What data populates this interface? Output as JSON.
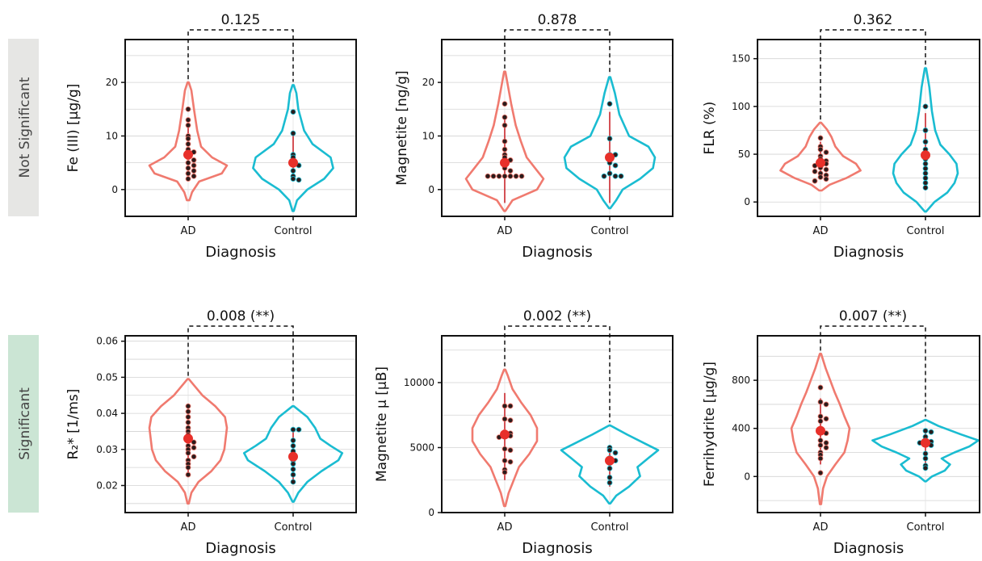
{
  "row_labels": [
    {
      "text": "Not Significant",
      "color": "#e6e6e4"
    },
    {
      "text": "Significant",
      "color": "#cbe5d4"
    }
  ],
  "colors": {
    "ad": "#f07a6f",
    "control": "#1abcd1",
    "mean": "#e8302a",
    "whisker": "#c9252c",
    "point": "#2b1b1b"
  },
  "chart_data": [
    {
      "type": "violin",
      "pvalue": "0.125",
      "ylabel": "Fe (III) [µg/g]",
      "xlabel": "Diagnosis",
      "categories": [
        "AD",
        "Control"
      ],
      "ylim": [
        -5,
        28
      ],
      "yticks": [
        0,
        10,
        20
      ],
      "grid": [
        -5,
        0,
        5,
        10,
        15,
        20,
        25
      ],
      "violins": [
        {
          "name": "AD",
          "lo": -2,
          "hi": 20,
          "widths": [
            [
              -2,
              0.02
            ],
            [
              -0.5,
              0.06
            ],
            [
              1.5,
              0.17
            ],
            [
              3,
              0.52
            ],
            [
              4.5,
              0.6
            ],
            [
              6,
              0.37
            ],
            [
              8,
              0.2
            ],
            [
              11,
              0.14
            ],
            [
              15,
              0.09
            ],
            [
              18.5,
              0.05
            ],
            [
              20,
              0.01
            ]
          ]
        },
        {
          "name": "Control",
          "lo": -4,
          "hi": 19.5,
          "widths": [
            [
              -4,
              0.01
            ],
            [
              -2,
              0.06
            ],
            [
              0,
              0.22
            ],
            [
              2,
              0.48
            ],
            [
              4,
              0.62
            ],
            [
              6,
              0.58
            ],
            [
              8.5,
              0.3
            ],
            [
              11,
              0.17
            ],
            [
              15,
              0.08
            ],
            [
              18,
              0.05
            ],
            [
              19.5,
              0.01
            ]
          ]
        }
      ],
      "points": [
        [
          15,
          13,
          12,
          10,
          9.5,
          8.5,
          7.5,
          7,
          6.5,
          6,
          5.5,
          5,
          4.5,
          4,
          3.5,
          3,
          2.5,
          2
        ],
        [
          14.5,
          10.5,
          6.5,
          6,
          5,
          4.5,
          3.5,
          2.5,
          2,
          1.8
        ]
      ],
      "mean": [
        6.5,
        5.0
      ],
      "whisker": [
        [
          2,
          12.5
        ],
        [
          1.8,
          10.5
        ]
      ]
    },
    {
      "type": "violin",
      "pvalue": "0.878",
      "ylabel": "Magnetite [ng/g]",
      "xlabel": "Diagnosis",
      "categories": [
        "AD",
        "Control"
      ],
      "ylim": [
        -5,
        28
      ],
      "yticks": [
        0,
        10,
        20
      ],
      "grid": [
        -5,
        0,
        5,
        10,
        15,
        20,
        25
      ],
      "violins": [
        {
          "name": "AD",
          "lo": -4,
          "hi": 22,
          "widths": [
            [
              -4,
              0.01
            ],
            [
              -2,
              0.12
            ],
            [
              0,
              0.5
            ],
            [
              2,
              0.6
            ],
            [
              4,
              0.47
            ],
            [
              6,
              0.34
            ],
            [
              9,
              0.25
            ],
            [
              12,
              0.17
            ],
            [
              16,
              0.1
            ],
            [
              20,
              0.04
            ],
            [
              22,
              0.01
            ]
          ]
        },
        {
          "name": "Control",
          "lo": -3.5,
          "hi": 21,
          "widths": [
            [
              -3.5,
              0.01
            ],
            [
              -2,
              0.1
            ],
            [
              0,
              0.2
            ],
            [
              2,
              0.47
            ],
            [
              4,
              0.67
            ],
            [
              6,
              0.7
            ],
            [
              8,
              0.6
            ],
            [
              10,
              0.3
            ],
            [
              14,
              0.15
            ],
            [
              18,
              0.08
            ],
            [
              21,
              0.01
            ]
          ]
        }
      ],
      "points": [
        [
          16,
          13.5,
          12,
          9,
          7.5,
          6.5,
          6,
          5.5,
          5,
          4,
          3.5,
          2.5,
          2.5,
          2.5,
          2.5,
          2.5,
          2.5,
          2.5
        ],
        [
          16,
          9.5,
          6.5,
          6.5,
          5,
          4.5,
          3,
          2.5,
          2.5,
          2.5
        ]
      ],
      "mean": [
        5.0,
        6.0
      ],
      "whisker": [
        [
          -2.5,
          13
        ],
        [
          -2.5,
          14.5
        ]
      ]
    },
    {
      "type": "violin",
      "pvalue": "0.362",
      "ylabel": "FLR (%)",
      "xlabel": "Diagnosis",
      "categories": [
        "AD",
        "Control"
      ],
      "ylim": [
        -15,
        170
      ],
      "yticks": [
        0,
        50,
        100,
        150
      ],
      "grid": [
        0,
        25,
        50,
        75,
        100,
        125,
        150
      ],
      "violins": [
        {
          "name": "AD",
          "lo": 12,
          "hi": 83,
          "widths": [
            [
              12,
              0.02
            ],
            [
              18,
              0.14
            ],
            [
              25,
              0.4
            ],
            [
              33,
              0.62
            ],
            [
              40,
              0.55
            ],
            [
              48,
              0.35
            ],
            [
              58,
              0.23
            ],
            [
              68,
              0.17
            ],
            [
              76,
              0.1
            ],
            [
              83,
              0.01
            ]
          ]
        },
        {
          "name": "Control",
          "lo": -10,
          "hi": 140,
          "widths": [
            [
              -10,
              0.01
            ],
            [
              0,
              0.14
            ],
            [
              10,
              0.34
            ],
            [
              20,
              0.45
            ],
            [
              30,
              0.5
            ],
            [
              40,
              0.48
            ],
            [
              50,
              0.37
            ],
            [
              60,
              0.23
            ],
            [
              75,
              0.15
            ],
            [
              95,
              0.1
            ],
            [
              120,
              0.06
            ],
            [
              140,
              0.01
            ]
          ]
        }
      ],
      "points": [
        [
          67,
          58,
          55,
          52,
          48,
          45,
          43,
          41,
          40,
          38,
          36,
          34,
          32,
          30,
          28,
          26,
          24,
          22
        ],
        [
          100,
          75,
          63,
          55,
          45,
          40,
          35,
          30,
          25,
          20,
          15
        ]
      ],
      "mean": [
        41,
        49
      ],
      "whisker": [
        [
          25,
          63
        ],
        [
          12,
          93
        ]
      ]
    },
    {
      "type": "violin",
      "pvalue": "0.008 (**)",
      "ylabel": "R₂* [1/ms]",
      "xlabel": "Diagnosis",
      "categories": [
        "AD",
        "Control"
      ],
      "ylim": [
        0.0125,
        0.0615
      ],
      "yticks": [
        0.02,
        0.03,
        0.04,
        0.05,
        0.06
      ],
      "yticklabels": [
        "0.02",
        "0.03",
        "0.04",
        "0.05",
        "0.06"
      ],
      "grid": [
        0.015,
        0.02,
        0.025,
        0.03,
        0.035,
        0.04,
        0.045,
        0.05,
        0.055,
        0.06
      ],
      "violins": [
        {
          "name": "AD",
          "lo": 0.015,
          "hi": 0.0495,
          "widths": [
            [
              0.015,
              0.01
            ],
            [
              0.018,
              0.05
            ],
            [
              0.021,
              0.16
            ],
            [
              0.024,
              0.36
            ],
            [
              0.027,
              0.5
            ],
            [
              0.03,
              0.56
            ],
            [
              0.033,
              0.58
            ],
            [
              0.036,
              0.6
            ],
            [
              0.039,
              0.57
            ],
            [
              0.042,
              0.42
            ],
            [
              0.045,
              0.22
            ],
            [
              0.048,
              0.08
            ],
            [
              0.0495,
              0.01
            ]
          ]
        },
        {
          "name": "Control",
          "lo": 0.0155,
          "hi": 0.042,
          "widths": [
            [
              0.0155,
              0.01
            ],
            [
              0.018,
              0.08
            ],
            [
              0.021,
              0.22
            ],
            [
              0.024,
              0.44
            ],
            [
              0.027,
              0.7
            ],
            [
              0.029,
              0.76
            ],
            [
              0.031,
              0.58
            ],
            [
              0.033,
              0.42
            ],
            [
              0.036,
              0.34
            ],
            [
              0.039,
              0.22
            ],
            [
              0.042,
              0.01
            ]
          ]
        }
      ],
      "points": [
        [
          0.042,
          0.0405,
          0.039,
          0.0375,
          0.036,
          0.035,
          0.034,
          0.033,
          0.032,
          0.031,
          0.0305,
          0.03,
          0.029,
          0.028,
          0.027,
          0.026,
          0.025,
          0.023
        ],
        [
          0.0355,
          0.0355,
          0.0325,
          0.031,
          0.0295,
          0.028,
          0.027,
          0.026,
          0.0245,
          0.023,
          0.021
        ]
      ],
      "mean": [
        0.033,
        0.028
      ],
      "whisker": [
        [
          0.023,
          0.042
        ],
        [
          0.021,
          0.0355
        ]
      ]
    },
    {
      "type": "violin",
      "pvalue": "0.002 (**)",
      "ylabel": "Magnetite µ [µB]",
      "xlabel": "Diagnosis",
      "categories": [
        "AD",
        "Control"
      ],
      "ylim": [
        0,
        13600
      ],
      "yticks": [
        0,
        5000,
        10000
      ],
      "grid": [
        0,
        2500,
        5000,
        7500,
        10000,
        12500
      ],
      "violins": [
        {
          "name": "AD",
          "lo": 500,
          "hi": 11000,
          "widths": [
            [
              500,
              0.01
            ],
            [
              1500,
              0.06
            ],
            [
              2500,
              0.14
            ],
            [
              3500,
              0.22
            ],
            [
              4500,
              0.38
            ],
            [
              5500,
              0.5
            ],
            [
              6500,
              0.5
            ],
            [
              7500,
              0.4
            ],
            [
              8500,
              0.25
            ],
            [
              9500,
              0.12
            ],
            [
              10500,
              0.05
            ],
            [
              11000,
              0.01
            ]
          ]
        },
        {
          "name": "Control",
          "lo": 700,
          "hi": 6700,
          "widths": [
            [
              700,
              0.01
            ],
            [
              1300,
              0.1
            ],
            [
              2000,
              0.3
            ],
            [
              2800,
              0.47
            ],
            [
              3500,
              0.43
            ],
            [
              4200,
              0.6
            ],
            [
              4800,
              0.75
            ],
            [
              5300,
              0.55
            ],
            [
              6000,
              0.27
            ],
            [
              6700,
              0.01
            ]
          ]
        }
      ],
      "points": [
        [
          8200,
          8200,
          7200,
          7100,
          6200,
          6100,
          6000,
          5900,
          5800,
          4900,
          4800,
          4000,
          3900,
          3300,
          3100
        ],
        [
          5000,
          4800,
          4600,
          4200,
          4000,
          3800,
          3400,
          2700,
          2300
        ]
      ],
      "mean": [
        6000,
        4000
      ],
      "whisker": [
        [
          2500,
          9200
        ],
        [
          2000,
          5200
        ]
      ]
    },
    {
      "type": "violin",
      "pvalue": "0.007 (**)",
      "ylabel": "Ferrihydrite [µg/g]",
      "xlabel": "Diagnosis",
      "categories": [
        "AD",
        "Control"
      ],
      "ylim": [
        -300,
        1170
      ],
      "yticks": [
        0,
        400,
        800
      ],
      "grid": [
        -200,
        0,
        200,
        400,
        600,
        800,
        1000
      ],
      "violins": [
        {
          "name": "AD",
          "lo": -230,
          "hi": 1020,
          "widths": [
            [
              -230,
              0.01
            ],
            [
              -100,
              0.04
            ],
            [
              0,
              0.1
            ],
            [
              100,
              0.23
            ],
            [
              200,
              0.37
            ],
            [
              300,
              0.42
            ],
            [
              400,
              0.45
            ],
            [
              500,
              0.37
            ],
            [
              600,
              0.3
            ],
            [
              700,
              0.22
            ],
            [
              800,
              0.15
            ],
            [
              900,
              0.08
            ],
            [
              1020,
              0.01
            ]
          ]
        },
        {
          "name": "Control",
          "lo": -40,
          "hi": 470,
          "widths": [
            [
              -40,
              0.01
            ],
            [
              0,
              0.1
            ],
            [
              50,
              0.3
            ],
            [
              100,
              0.38
            ],
            [
              150,
              0.25
            ],
            [
              200,
              0.45
            ],
            [
              250,
              0.68
            ],
            [
              300,
              0.82
            ],
            [
              350,
              0.55
            ],
            [
              420,
              0.2
            ],
            [
              470,
              0.01
            ]
          ]
        }
      ],
      "points": [
        [
          740,
          620,
          600,
          500,
          480,
          460,
          400,
          380,
          360,
          300,
          280,
          260,
          240,
          200,
          180,
          150,
          30
        ],
        [
          380,
          370,
          330,
          300,
          290,
          280,
          270,
          260,
          190,
          150,
          90,
          70
        ]
      ],
      "mean": [
        380,
        280
      ],
      "whisker": [
        [
          100,
          650
        ],
        [
          80,
          380
        ]
      ]
    }
  ]
}
